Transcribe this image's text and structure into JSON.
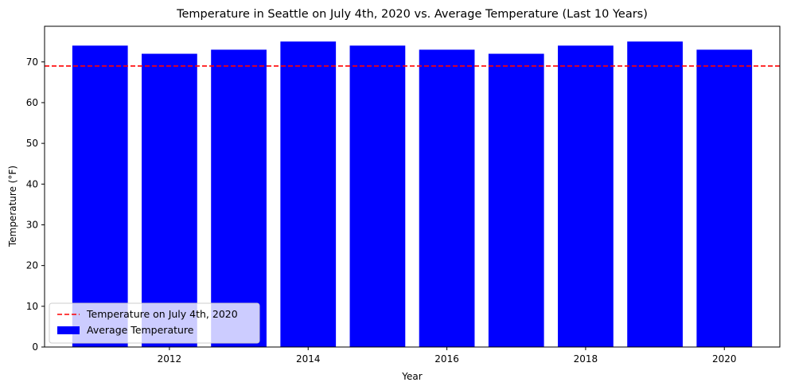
{
  "chart_data": {
    "type": "bar",
    "title": "Temperature in Seattle on July 4th, 2020 vs. Average Temperature (Last 10 Years)",
    "xlabel": "Year",
    "ylabel": "Temperature (°F)",
    "x": [
      2011,
      2012,
      2013,
      2014,
      2015,
      2016,
      2017,
      2018,
      2019,
      2020
    ],
    "series": [
      {
        "name": "Average Temperature",
        "values": [
          74,
          72,
          73,
          75,
          74,
          73,
          72,
          74,
          75,
          73
        ],
        "color": "#0000ff"
      }
    ],
    "reference_line": {
      "name": "Temperature on July 4th, 2020",
      "value": 69,
      "color": "#ff0000",
      "style": "dashed"
    },
    "xlim": [
      2010.2,
      2020.8
    ],
    "ylim": [
      0,
      78.75
    ],
    "xticks": [
      "2012",
      "2014",
      "2016",
      "2018",
      "2020"
    ],
    "yticks": [
      "0",
      "10",
      "20",
      "30",
      "40",
      "50",
      "60",
      "70"
    ],
    "grid": false,
    "legend": "lower-left"
  }
}
